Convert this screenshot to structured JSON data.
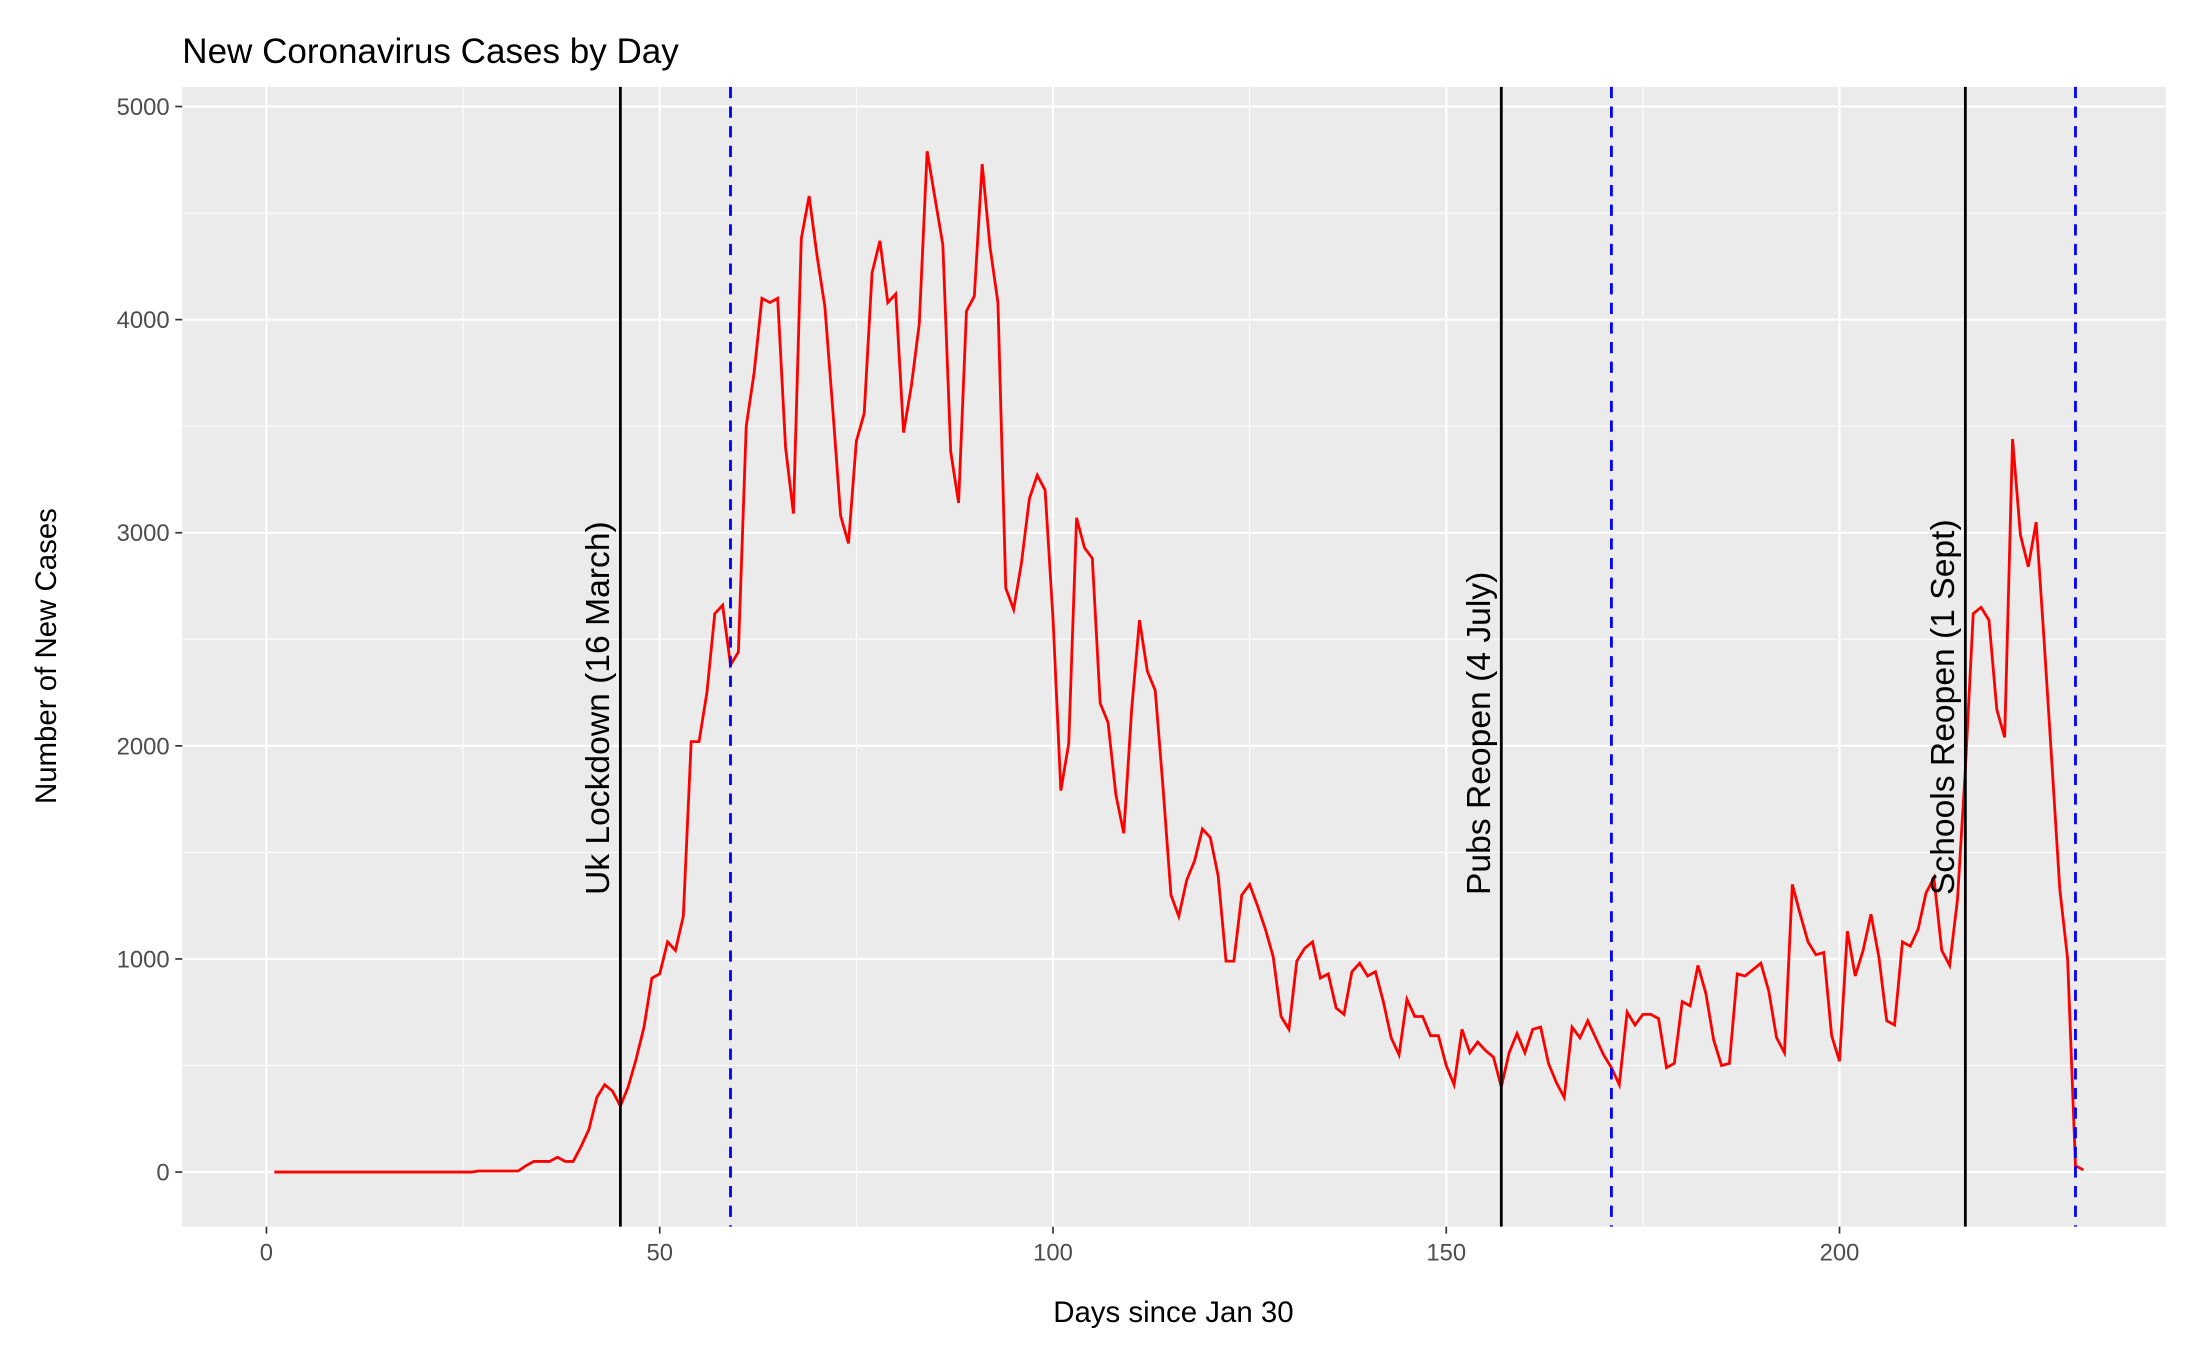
{
  "chart_data": {
    "type": "line",
    "title": "New Coronavirus Cases by Day",
    "x_label": "Days since Jan 30",
    "y_label": "Number of New Cases",
    "x": [
      1,
      2,
      3,
      4,
      5,
      6,
      7,
      8,
      9,
      10,
      11,
      12,
      13,
      14,
      15,
      16,
      17,
      18,
      19,
      20,
      21,
      22,
      23,
      24,
      25,
      26,
      27,
      28,
      29,
      30,
      31,
      32,
      33,
      34,
      35,
      36,
      37,
      38,
      39,
      40,
      41,
      42,
      43,
      44,
      45,
      46,
      47,
      48,
      49,
      50,
      51,
      52,
      53,
      54,
      55,
      56,
      57,
      58,
      59,
      60,
      61,
      62,
      63,
      64,
      65,
      66,
      67,
      68,
      69,
      70,
      71,
      72,
      73,
      74,
      75,
      76,
      77,
      78,
      79,
      80,
      81,
      82,
      83,
      84,
      85,
      86,
      87,
      88,
      89,
      90,
      91,
      92,
      93,
      94,
      95,
      96,
      97,
      98,
      99,
      100,
      101,
      102,
      103,
      104,
      105,
      106,
      107,
      108,
      109,
      110,
      111,
      112,
      113,
      114,
      115,
      116,
      117,
      118,
      119,
      120,
      121,
      122,
      123,
      124,
      125,
      126,
      127,
      128,
      129,
      130,
      131,
      132,
      133,
      134,
      135,
      136,
      137,
      138,
      139,
      140,
      141,
      142,
      143,
      144,
      145,
      146,
      147,
      148,
      149,
      150,
      151,
      152,
      153,
      154,
      155,
      156,
      157,
      158,
      159,
      160,
      161,
      162,
      163,
      164,
      165,
      166,
      167,
      168,
      169,
      170,
      171,
      172,
      173,
      174,
      175,
      176,
      177,
      178,
      179,
      180,
      181,
      182,
      183,
      184,
      185,
      186,
      187,
      188,
      189,
      190,
      191,
      192,
      193,
      194,
      195,
      196,
      197,
      198,
      199,
      200,
      201,
      202,
      203,
      204,
      205,
      206,
      207,
      208,
      209,
      210,
      211,
      212,
      213,
      214,
      215,
      216,
      217,
      218,
      219,
      220,
      221,
      222,
      223,
      224,
      225,
      226,
      227,
      228,
      229,
      230,
      231
    ],
    "series": [
      {
        "name": "New Cases",
        "color": "#ff0000",
        "values": [
          0,
          0,
          0,
          0,
          0,
          0,
          0,
          0,
          0,
          0,
          0,
          0,
          0,
          0,
          0,
          0,
          0,
          0,
          0,
          0,
          0,
          0,
          0,
          0,
          0,
          0,
          5,
          5,
          5,
          5,
          5,
          5,
          30,
          50,
          50,
          50,
          70,
          50,
          50,
          120,
          200,
          350,
          410,
          380,
          310,
          400,
          530,
          680,
          910,
          930,
          1080,
          1040,
          1200,
          2020,
          2020,
          2250,
          2620,
          2660,
          2380,
          2440,
          3500,
          3750,
          4100,
          4080,
          4100,
          3400,
          3090,
          4380,
          4580,
          4300,
          4060,
          3580,
          3080,
          2950,
          3430,
          3560,
          4220,
          4370,
          4080,
          4120,
          3470,
          3690,
          3980,
          4790,
          4570,
          4350,
          3380,
          3140,
          4040,
          4110,
          4730,
          4340,
          4080,
          2740,
          2640,
          2860,
          3160,
          3270,
          3200,
          2600,
          1790,
          2010,
          3070,
          2930,
          2880,
          2200,
          2110,
          1770,
          1590,
          2170,
          2590,
          2350,
          2260,
          1800,
          1300,
          1200,
          1370,
          1460,
          1610,
          1570,
          1390,
          990,
          990,
          1300,
          1350,
          1250,
          1140,
          1010,
          730,
          670,
          990,
          1050,
          1080,
          910,
          930,
          770,
          740,
          940,
          980,
          920,
          940,
          800,
          630,
          550,
          810,
          730,
          730,
          640,
          640,
          500,
          410,
          670,
          560,
          610,
          570,
          540,
          400,
          560,
          650,
          560,
          670,
          680,
          510,
          420,
          350,
          680,
          630,
          710,
          630,
          550,
          490,
          410,
          750,
          690,
          740,
          740,
          720,
          490,
          510,
          800,
          780,
          970,
          840,
          620,
          500,
          510,
          930,
          920,
          950,
          980,
          850,
          630,
          560,
          1350,
          1210,
          1080,
          1020,
          1030,
          640,
          520,
          1130,
          920,
          1040,
          1210,
          1010,
          710,
          690,
          1080,
          1060,
          1140,
          1310,
          1380,
          1040,
          970,
          1280,
          1890,
          2620,
          2650,
          2590,
          2170,
          2040,
          3440,
          2990,
          2840,
          3050,
          2500,
          1920,
          1330,
          1000,
          30,
          10
        ]
      }
    ],
    "event_lines": [
      {
        "x": 45,
        "label": "Uk Lockdown (16 March)",
        "color": "#000000"
      },
      {
        "x": 157,
        "label": "Pubs Reopen (4 July)",
        "color": "#000000"
      },
      {
        "x": 216,
        "label": "Schools Reopen (1 Sept)",
        "color": "#000000"
      }
    ],
    "dashed_lines": {
      "color": "#0000ff",
      "x": [
        59,
        171,
        230
      ]
    },
    "xlim": [
      -10.7,
      241.5
    ],
    "ylim": [
      -256,
      5092
    ],
    "xticks": [
      0,
      50,
      100,
      150,
      200
    ],
    "yticks": [
      0,
      1000,
      2000,
      3000,
      4000,
      5000
    ],
    "grid": true
  }
}
